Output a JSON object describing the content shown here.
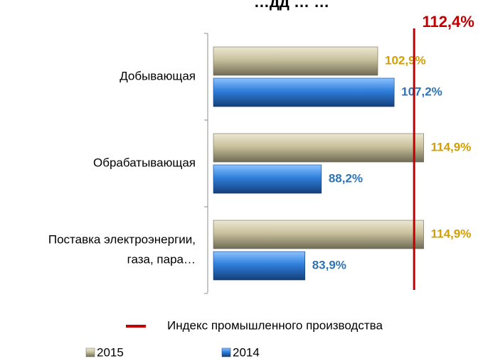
{
  "chart_data": {
    "type": "bar",
    "orientation": "horizontal",
    "title": "…дд … …",
    "categories": [
      "Добывающая",
      "Обрабатывающая",
      "Поставка электроэнергии, газа, пара…"
    ],
    "category_lines": [
      [
        "Добывающая"
      ],
      [
        "Обрабатывающая"
      ],
      [
        "Поставка электроэнергии,",
        "газа, пара…"
      ]
    ],
    "series": [
      {
        "name": "2015",
        "values": [
          102.9,
          114.9,
          114.9
        ],
        "labels": [
          "102,9%",
          "114,9%",
          "114,9%"
        ],
        "color": "#c4bc96",
        "label_color": "#d39e00"
      },
      {
        "name": "2014",
        "values": [
          107.2,
          88.2,
          83.9
        ],
        "labels": [
          "107,2%",
          "88,2%",
          "83,9%"
        ],
        "color": "#2e75d6",
        "label_color": "#2e74b5"
      }
    ],
    "reference_line": {
      "name": "Индекс промышленного производства",
      "value": 112.4,
      "label": "112,4%",
      "color": "#c00000"
    },
    "xlim": [
      60,
      125
    ],
    "legend_position": "bottom-left",
    "grid": false
  }
}
